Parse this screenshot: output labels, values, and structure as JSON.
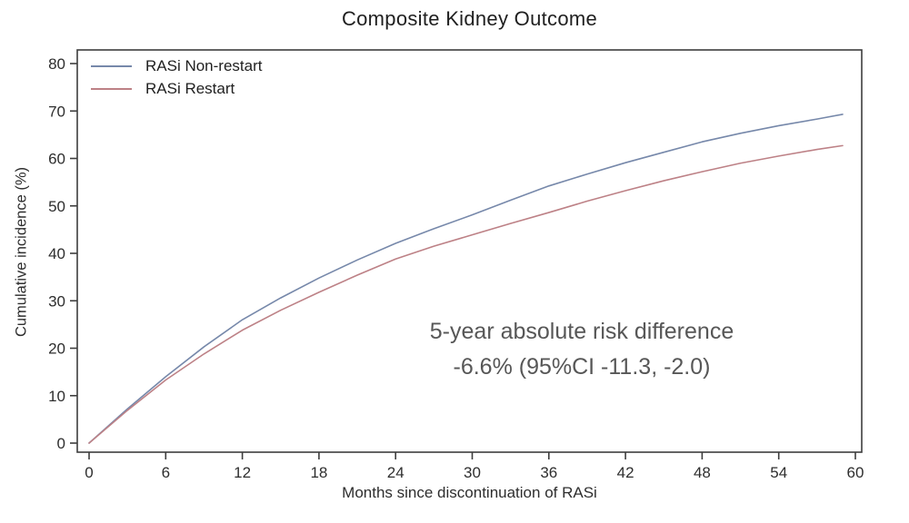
{
  "page": {
    "background_color": "#ffffff"
  },
  "chart_data": {
    "type": "line",
    "title": "Composite Kidney Outcome",
    "xlabel": "Months since discontinuation of RASi",
    "ylabel": "Cumulative incidence (%)",
    "xlim": [
      0,
      60
    ],
    "ylim": [
      0,
      80
    ],
    "x_ticks": [
      0,
      6,
      12,
      18,
      24,
      30,
      36,
      42,
      48,
      54,
      60
    ],
    "y_ticks": [
      0,
      10,
      20,
      30,
      40,
      50,
      60,
      70,
      80
    ],
    "grid": false,
    "legend_position": "top-left-inside",
    "frame_color": "#3d3d3d",
    "x": [
      0,
      3,
      6,
      9,
      12,
      15,
      18,
      21,
      24,
      27,
      30,
      33,
      36,
      39,
      42,
      45,
      48,
      51,
      54,
      57,
      59
    ],
    "series": [
      {
        "name": "RASi Non-restart",
        "color": "#7688aa",
        "values": [
          0,
          7.2,
          14.0,
          20.3,
          26.0,
          30.6,
          34.8,
          38.6,
          42.1,
          45.2,
          48.1,
          51.2,
          54.2,
          56.7,
          59.1,
          61.3,
          63.5,
          65.3,
          66.9,
          68.3,
          69.3
        ]
      },
      {
        "name": "RASi Restart",
        "color": "#bd8186",
        "values": [
          0,
          6.9,
          13.3,
          18.8,
          23.8,
          28.0,
          31.8,
          35.4,
          38.8,
          41.5,
          43.9,
          46.3,
          48.6,
          51.0,
          53.2,
          55.3,
          57.2,
          59.0,
          60.5,
          61.9,
          62.7
        ]
      }
    ],
    "annotation_lines": [
      "5-year absolute risk difference",
      "-6.6% (95%CI -11.3, -2.0)"
    ]
  }
}
